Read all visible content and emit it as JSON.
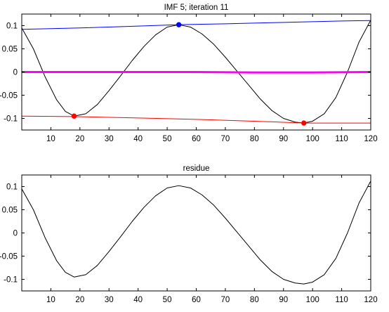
{
  "chart_data": [
    {
      "type": "line",
      "title": "IMF 5;   iteration 11",
      "xlabel": "",
      "ylabel": "",
      "xlim": [
        0,
        120
      ],
      "ylim": [
        -0.125,
        0.125
      ],
      "xticks": [
        10,
        20,
        30,
        40,
        50,
        60,
        70,
        80,
        90,
        100,
        110,
        120
      ],
      "xtick_labels": [
        "10",
        "20",
        "30",
        "40",
        "50",
        "60",
        "70",
        "80",
        "90",
        "100",
        "110",
        "120"
      ],
      "yticks": [
        0.1,
        0.05,
        0,
        -0.05,
        -0.1
      ],
      "ytick_labels": [
        "0.1",
        "0.05",
        "0",
        "-0.05",
        "-0.1"
      ],
      "grid": false,
      "series": [
        {
          "role": "signal",
          "color": "#000000",
          "x": [
            0,
            4,
            8,
            12,
            15,
            18,
            22,
            26,
            30,
            34,
            38,
            42,
            46,
            50,
            54,
            58,
            62,
            66,
            70,
            74,
            78,
            82,
            86,
            90,
            94,
            97,
            100,
            104,
            108,
            112,
            116,
            120
          ],
          "y": [
            0.095,
            0.05,
            -0.01,
            -0.06,
            -0.085,
            -0.095,
            -0.09,
            -0.07,
            -0.04,
            -0.008,
            0.025,
            0.055,
            0.08,
            0.097,
            0.102,
            0.097,
            0.082,
            0.06,
            0.032,
            0.002,
            -0.028,
            -0.058,
            -0.083,
            -0.1,
            -0.108,
            -0.11,
            -0.106,
            -0.09,
            -0.055,
            0.0,
            0.065,
            0.112
          ]
        },
        {
          "role": "upper-envelope",
          "color": "#0000ff",
          "x": [
            0,
            20,
            40,
            54,
            70,
            90,
            110,
            120
          ],
          "y": [
            0.092,
            0.095,
            0.099,
            0.102,
            0.104,
            0.107,
            0.11,
            0.111
          ]
        },
        {
          "role": "lower-envelope",
          "color": "#ff0000",
          "x": [
            0,
            18,
            40,
            60,
            80,
            97,
            110,
            120
          ],
          "y": [
            -0.095,
            -0.096,
            -0.099,
            -0.102,
            -0.106,
            -0.11,
            -0.11,
            -0.11
          ]
        },
        {
          "role": "mean",
          "color": "#ff00ff",
          "x": [
            0,
            20,
            40,
            60,
            80,
            100,
            120
          ],
          "y": [
            0.0,
            0.0,
            0.0,
            0.0,
            -0.001,
            -0.001,
            0.0
          ]
        }
      ],
      "markers": [
        {
          "color": "#0000ff",
          "x": 54,
          "y": 0.102
        },
        {
          "color": "#ff0000",
          "x": 18,
          "y": -0.095
        },
        {
          "color": "#ff0000",
          "x": 97,
          "y": -0.11
        }
      ]
    },
    {
      "type": "line",
      "title": "residue",
      "xlabel": "",
      "ylabel": "",
      "xlim": [
        0,
        120
      ],
      "ylim": [
        -0.125,
        0.125
      ],
      "xticks": [
        10,
        20,
        30,
        40,
        50,
        60,
        70,
        80,
        90,
        100,
        110,
        120
      ],
      "xtick_labels": [
        "10",
        "20",
        "30",
        "40",
        "50",
        "60",
        "70",
        "80",
        "90",
        "100",
        "110",
        "120"
      ],
      "yticks": [
        0.1,
        0.05,
        0,
        -0.05,
        -0.1
      ],
      "ytick_labels": [
        "0.1",
        "0.05",
        "0",
        "-0.05",
        "-0.1"
      ],
      "grid": false,
      "series": [
        {
          "role": "residue",
          "color": "#000000",
          "x": [
            0,
            4,
            8,
            12,
            15,
            18,
            22,
            26,
            30,
            34,
            38,
            42,
            46,
            50,
            54,
            58,
            62,
            66,
            70,
            74,
            78,
            82,
            86,
            90,
            94,
            97,
            100,
            104,
            108,
            112,
            116,
            120
          ],
          "y": [
            0.095,
            0.05,
            -0.01,
            -0.06,
            -0.085,
            -0.095,
            -0.09,
            -0.07,
            -0.04,
            -0.008,
            0.025,
            0.055,
            0.08,
            0.097,
            0.102,
            0.097,
            0.082,
            0.06,
            0.032,
            0.002,
            -0.028,
            -0.058,
            -0.083,
            -0.1,
            -0.108,
            -0.11,
            -0.106,
            -0.09,
            -0.055,
            0.0,
            0.065,
            0.112
          ]
        }
      ],
      "markers": []
    }
  ]
}
